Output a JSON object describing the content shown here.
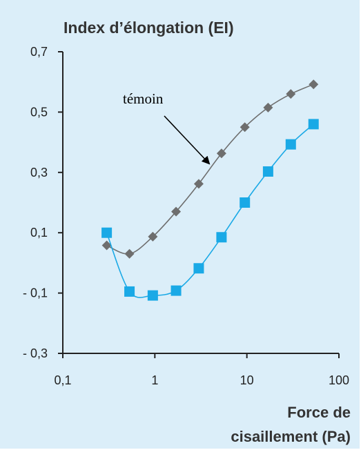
{
  "chart_data": {
    "type": "line",
    "title": "Index d’élongation (EI)",
    "xlabel_lines": [
      "Force de",
      "cisaillement (Pa)"
    ],
    "x_scale": "log",
    "xlim": [
      0.1,
      100
    ],
    "ylim": [
      -0.3,
      0.7
    ],
    "x_ticks": [
      {
        "value": 0.1,
        "label": "0,1"
      },
      {
        "value": 1,
        "label": "1"
      },
      {
        "value": 10,
        "label": "10"
      },
      {
        "value": 100,
        "label": "100"
      }
    ],
    "y_ticks": [
      {
        "value": 0.7,
        "label": "0,7"
      },
      {
        "value": 0.5,
        "label": "0,5"
      },
      {
        "value": 0.3,
        "label": "0,3"
      },
      {
        "value": 0.1,
        "label": "0,1"
      },
      {
        "value": -0.1,
        "label": "- 0,1"
      },
      {
        "value": -0.3,
        "label": "- 0,3"
      }
    ],
    "grid": false,
    "legend": "none",
    "series": [
      {
        "name": "témoin",
        "marker": "diamond",
        "color": "#6e6e6e",
        "x": [
          0.3,
          0.53,
          0.95,
          1.7,
          3.0,
          5.3,
          9.5,
          17,
          30,
          53
        ],
        "y": [
          0.058,
          0.03,
          0.087,
          0.17,
          0.262,
          0.363,
          0.45,
          0.515,
          0.56,
          0.592
        ]
      },
      {
        "marker": "square",
        "color": "#1aa9e6",
        "x": [
          0.3,
          0.53,
          0.95,
          1.7,
          3.0,
          5.3,
          9.5,
          17,
          30,
          53
        ],
        "y": [
          0.1,
          -0.095,
          -0.108,
          -0.092,
          -0.018,
          0.085,
          0.2,
          0.303,
          0.393,
          0.46
        ]
      }
    ],
    "annotations": [
      {
        "text": "témoin",
        "arrow_to_series": 0
      }
    ]
  }
}
